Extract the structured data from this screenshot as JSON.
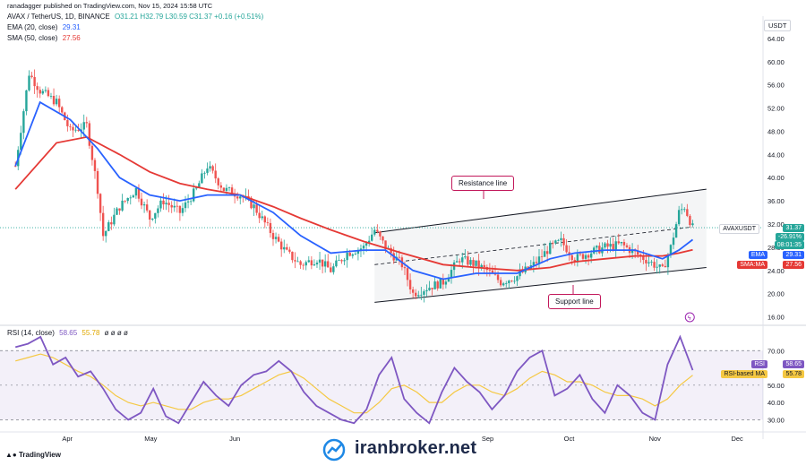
{
  "header": {
    "credit": "ranadagger published on TradingView.com, Nov 15, 2024 15:58 UTC",
    "symbol": "AVAX / TetherUS, 1D, BINANCE",
    "ohlc": "O31.21 H32.79 L30.59 C31.37 +0.16 (+0.51%)",
    "ema_label": "EMA (20, close)",
    "ema_value": "29.31",
    "sma_label": "SMA (50, close)",
    "sma_value": "27.56",
    "rsi_label": "RSI (14, close)",
    "rsi_value": "58.65",
    "rsi_ma_value": "55.78",
    "rsi_placeholders": "ø ø ø ø"
  },
  "currency": "USDT",
  "tags": {
    "symbol_name": "AVAXUSDT",
    "price": "31.37",
    "change": "-26.91%",
    "countdown": "08:01:35",
    "ema_tag": "EMA",
    "ema_price": "29.31",
    "sma_tag": "SMA:MA",
    "sma_price": "27.56",
    "rsi_tag": "RSI",
    "rsi_price": "58.65",
    "rsi_ma_tag": "RSI-based MA",
    "rsi_ma_price": "55.78"
  },
  "annotations": {
    "resistance": "Resistance line",
    "support": "Support line"
  },
  "watermark": "iranbroker.net",
  "tradingview_logo": "TradingView",
  "colors": {
    "up": "#26a69a",
    "down": "#ef5350",
    "ema": "#2962ff",
    "sma": "#e53935",
    "rsi": "#7e57c2",
    "rsi_ma": "#f5c842",
    "channel": "#131722",
    "annotation_border": "#c2185b"
  },
  "chart_data": [
    {
      "type": "candlestick",
      "title": "AVAX / TetherUS, 1D, BINANCE",
      "yaxis_ticks": [
        "64.00",
        "60.00",
        "56.00",
        "52.00",
        "48.00",
        "44.00",
        "40.00",
        "36.00",
        "32.00",
        "28.00",
        "24.00",
        "20.00",
        "16.00"
      ],
      "ylim": [
        15,
        66
      ],
      "xaxis_ticks": [
        "Apr",
        "May",
        "Jun",
        "Sep",
        "Oct",
        "Nov",
        "Dec"
      ],
      "series": [
        {
          "name": "EMA (20, close)",
          "last": 29.31
        },
        {
          "name": "SMA (50, close)",
          "last": 27.56
        }
      ],
      "close_path": [
        [
          "Mar 13",
          42
        ],
        [
          "Mar 18",
          58
        ],
        [
          "Mar 22",
          55
        ],
        [
          "Mar 28",
          53
        ],
        [
          "Apr 02",
          48
        ],
        [
          "Apr 08",
          49
        ],
        [
          "Apr 12",
          38
        ],
        [
          "Apr 14",
          30
        ],
        [
          "Apr 20",
          35
        ],
        [
          "Apr 26",
          38
        ],
        [
          "May 01",
          33
        ],
        [
          "May 06",
          36
        ],
        [
          "May 12",
          34
        ],
        [
          "May 18",
          38
        ],
        [
          "May 22",
          42
        ],
        [
          "May 28",
          38
        ],
        [
          "Jun 03",
          37
        ],
        [
          "Jun 08",
          35
        ],
        [
          "Jun 15",
          30
        ],
        [
          "Jun 20",
          27
        ],
        [
          "Jun 25",
          25
        ],
        [
          "Jul 01",
          26
        ],
        [
          "Jul 06",
          24
        ],
        [
          "Jul 12",
          27
        ],
        [
          "Jul 18",
          28
        ],
        [
          "Jul 22",
          31
        ],
        [
          "Jul 26",
          28
        ],
        [
          "Aug 01",
          25
        ],
        [
          "Aug 05",
          20
        ],
        [
          "Aug 10",
          21
        ],
        [
          "Aug 16",
          22
        ],
        [
          "Aug 22",
          26
        ],
        [
          "Aug 28",
          25
        ],
        [
          "Sep 01",
          24
        ],
        [
          "Sep 06",
          22
        ],
        [
          "Sep 12",
          23
        ],
        [
          "Sep 18",
          25
        ],
        [
          "Sep 24",
          28
        ],
        [
          "Sep 28",
          29
        ],
        [
          "Oct 03",
          26
        ],
        [
          "Oct 08",
          27
        ],
        [
          "Oct 14",
          28
        ],
        [
          "Oct 20",
          28.5
        ],
        [
          "Oct 25",
          27
        ],
        [
          "Nov 01",
          25
        ],
        [
          "Nov 04",
          24
        ],
        [
          "Nov 07",
          28
        ],
        [
          "Nov 10",
          34
        ],
        [
          "Nov 12",
          35
        ],
        [
          "Nov 15",
          31.37
        ]
      ],
      "ema_path": [
        [
          "Mar 13",
          42
        ],
        [
          "Mar 22",
          53
        ],
        [
          "Apr 02",
          50
        ],
        [
          "Apr 12",
          45
        ],
        [
          "Apr 20",
          40
        ],
        [
          "May 01",
          37
        ],
        [
          "May 12",
          36
        ],
        [
          "May 22",
          37
        ],
        [
          "Jun 03",
          37
        ],
        [
          "Jun 15",
          34
        ],
        [
          "Jun 25",
          30
        ],
        [
          "Jul 06",
          27
        ],
        [
          "Jul 18",
          27.5
        ],
        [
          "Jul 26",
          27.5
        ],
        [
          "Aug 05",
          24
        ],
        [
          "Aug 16",
          22.5
        ],
        [
          "Aug 28",
          23.5
        ],
        [
          "Sep 12",
          23.5
        ],
        [
          "Sep 24",
          26
        ],
        [
          "Oct 03",
          27
        ],
        [
          "Oct 14",
          27.5
        ],
        [
          "Oct 25",
          27.5
        ],
        [
          "Nov 04",
          26
        ],
        [
          "Nov 10",
          27.5
        ],
        [
          "Nov 15",
          29.31
        ]
      ],
      "sma_path": [
        [
          "Mar 13",
          38
        ],
        [
          "Mar 28",
          46
        ],
        [
          "Apr 08",
          47
        ],
        [
          "Apr 20",
          44
        ],
        [
          "May 01",
          41
        ],
        [
          "May 12",
          39
        ],
        [
          "May 22",
          38
        ],
        [
          "Jun 03",
          37
        ],
        [
          "Jun 15",
          35
        ],
        [
          "Jun 25",
          33
        ],
        [
          "Jul 06",
          31
        ],
        [
          "Jul 18",
          29
        ],
        [
          "Aug 01",
          27
        ],
        [
          "Aug 16",
          25
        ],
        [
          "Aug 28",
          24.5
        ],
        [
          "Sep 12",
          24
        ],
        [
          "Sep 24",
          24.5
        ],
        [
          "Oct 03",
          25.5
        ],
        [
          "Oct 14",
          26
        ],
        [
          "Oct 25",
          26.5
        ],
        [
          "Nov 04",
          26.5
        ],
        [
          "Nov 10",
          27
        ],
        [
          "Nov 15",
          27.56
        ]
      ],
      "channel": {
        "resistance": [
          [
            "Jul 22",
            30.5
          ],
          [
            "Nov 20",
            38
          ]
        ],
        "support": [
          [
            "Jul 22",
            18.5
          ],
          [
            "Nov 20",
            24.5
          ]
        ],
        "midline": [
          [
            "Jul 22",
            25
          ],
          [
            "Nov 15",
            31.5
          ]
        ]
      }
    },
    {
      "type": "line",
      "title": "RSI (14, close)",
      "yaxis_ticks": [
        "70.00",
        "50.00",
        "40.00",
        "30.00"
      ],
      "ylim": [
        25,
        80
      ],
      "bands": [
        30,
        70
      ],
      "series": [
        {
          "name": "RSI",
          "values": [
            72,
            74,
            78,
            62,
            66,
            55,
            58,
            48,
            36,
            30,
            34,
            48,
            32,
            28,
            40,
            52,
            44,
            38,
            50,
            56,
            58,
            64,
            58,
            46,
            38,
            34,
            30,
            28,
            36,
            56,
            66,
            42,
            34,
            28,
            46,
            60,
            52,
            46,
            36,
            44,
            58,
            66,
            70,
            44,
            48,
            56,
            42,
            34,
            50,
            44,
            34,
            30,
            62,
            78,
            58.65
          ]
        },
        {
          "name": "RSI-based MA",
          "values": [
            64,
            66,
            68,
            66,
            62,
            58,
            55,
            50,
            44,
            40,
            38,
            40,
            38,
            36,
            36,
            40,
            42,
            42,
            44,
            48,
            52,
            56,
            58,
            54,
            48,
            42,
            38,
            34,
            34,
            40,
            48,
            50,
            46,
            40,
            40,
            46,
            50,
            50,
            46,
            44,
            48,
            54,
            58,
            56,
            52,
            52,
            50,
            46,
            44,
            44,
            42,
            38,
            42,
            50,
            55.78
          ]
        }
      ]
    }
  ]
}
